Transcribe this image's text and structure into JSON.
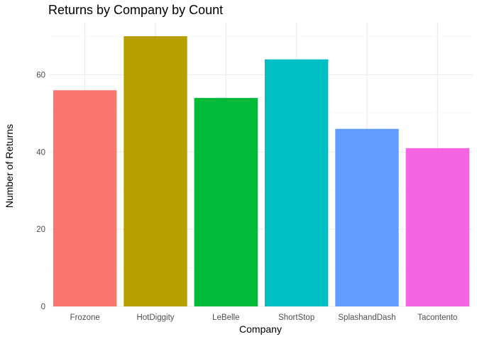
{
  "chart_data": {
    "type": "bar",
    "title": "Returns by Company by Count",
    "xlabel": "Company",
    "ylabel": "Number of Returns",
    "categories": [
      "Frozone",
      "HotDiggity",
      "LeBelle",
      "ShortStop",
      "SplashandDash",
      "Tacontento"
    ],
    "values": [
      56,
      70,
      54,
      64,
      46,
      41
    ],
    "colors": [
      "#F8766D",
      "#B79F00",
      "#00BA38",
      "#00BFC4",
      "#619CFF",
      "#F564E3"
    ],
    "ylim": [
      0,
      73.5
    ],
    "yticks": [
      0,
      20,
      40,
      60
    ],
    "ytick_labels": [
      "0",
      "20",
      "40",
      "60"
    ],
    "grid": true,
    "legend": "none"
  }
}
